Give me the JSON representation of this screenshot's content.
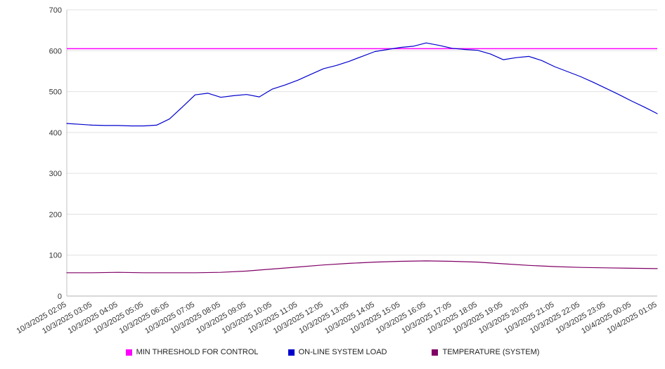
{
  "chart_data": {
    "type": "line",
    "title": "",
    "xlabel": "",
    "ylabel": "",
    "ylim": [
      0,
      700
    ],
    "ytick_step": 100,
    "grid": true,
    "legend_position": "bottom",
    "x_labels": [
      "10/3/2025 02:05",
      "10/3/2025 03:05",
      "10/3/2025 04:05",
      "10/3/2025 05:05",
      "10/3/2025 06:05",
      "10/3/2025 07:05",
      "10/3/2025 08:05",
      "10/3/2025 09:05",
      "10/3/2025 10:05",
      "10/3/2025 11:05",
      "10/3/2025 12:05",
      "10/3/2025 13:05",
      "10/3/2025 14:05",
      "10/3/2025 15:05",
      "10/3/2025 16:05",
      "10/3/2025 17:05",
      "10/3/2025 18:05",
      "10/3/2025 19:05",
      "10/3/2025 20:05",
      "10/3/2025 21:05",
      "10/3/2025 22:05",
      "10/3/2025 23:05",
      "10/4/2025 00:05",
      "10/4/2025 01:05"
    ],
    "series": [
      {
        "name": "MIN THRESHOLD FOR CONTROL",
        "color": "#ff00ff",
        "constant": 605
      },
      {
        "name": "ON-LINE SYSTEM LOAD",
        "color": "#0000cd",
        "values": [
          422,
          420,
          418,
          417,
          417,
          416,
          416,
          418,
          433,
          462,
          492,
          496,
          486,
          490,
          493,
          487,
          506,
          516,
          528,
          542,
          556,
          564,
          574,
          586,
          598,
          603,
          608,
          611,
          619,
          613,
          606,
          603,
          601,
          592,
          578,
          583,
          586,
          576,
          561,
          549,
          537,
          523,
          508,
          493,
          477,
          462,
          446
        ]
      },
      {
        "name": "TEMPERATURE (SYSTEM)",
        "color": "#800066",
        "values": [
          57,
          57,
          58,
          57,
          57,
          57,
          58,
          61,
          66,
          71,
          76,
          80,
          83,
          85,
          86,
          85,
          83,
          79,
          75,
          72,
          70,
          69,
          68,
          67
        ]
      }
    ]
  },
  "legend": {
    "items": [
      {
        "label": "MIN THRESHOLD FOR CONTROL",
        "color": "#ff00ff"
      },
      {
        "label": "ON-LINE SYSTEM LOAD",
        "color": "#0000cd"
      },
      {
        "label": "TEMPERATURE (SYSTEM)",
        "color": "#800066"
      }
    ]
  }
}
